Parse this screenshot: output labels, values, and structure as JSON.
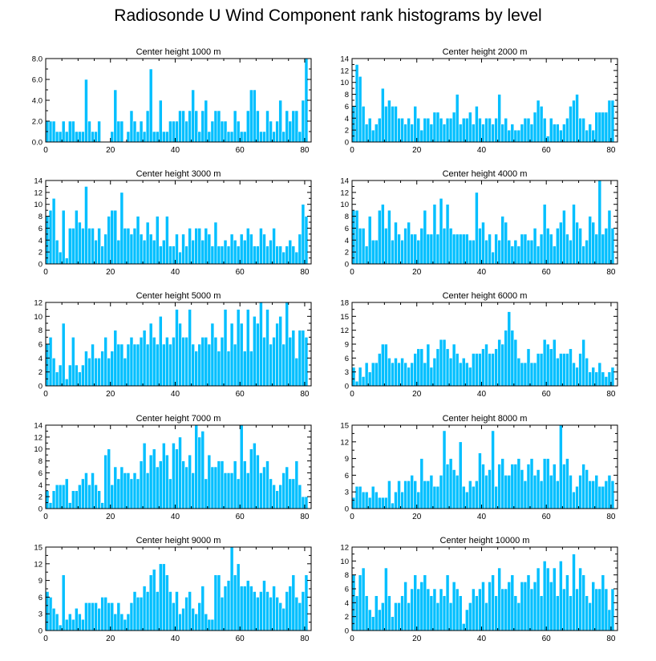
{
  "title": "Radiosonde U Wind Component rank histograms by level",
  "colors": {
    "bar_fill": "#00BFFF",
    "bar_edge": "#FFFFFF",
    "axis": "#000000"
  },
  "chart_data": [
    {
      "type": "bar",
      "title": "Center height 1000 m",
      "ylim": [
        0,
        8
      ],
      "yticks": [
        0,
        2,
        4,
        6,
        8
      ],
      "ytick_labels": [
        "0.0",
        "2.0",
        "4.0",
        "6.0",
        "8.0"
      ],
      "xlim": [
        0,
        82
      ],
      "xticks": [
        0,
        20,
        40,
        60,
        80
      ],
      "y_axis_side": "left",
      "values": [
        2,
        2,
        2,
        1,
        1,
        2,
        1,
        2,
        2,
        1,
        1,
        1,
        6,
        2,
        1,
        1,
        2,
        0,
        0,
        0,
        1,
        5,
        2,
        2,
        0,
        1,
        3,
        2,
        1,
        2,
        1,
        3,
        7,
        1,
        1,
        4,
        1,
        1,
        2,
        2,
        2,
        3,
        3,
        2,
        3,
        5,
        3,
        1,
        3,
        4,
        1,
        2,
        3,
        3,
        2,
        2,
        1,
        1,
        3,
        2,
        1,
        1,
        3,
        5,
        5,
        3,
        1,
        1,
        3,
        2,
        1,
        2,
        4,
        1,
        3,
        2,
        3,
        3,
        1,
        4,
        8
      ]
    },
    {
      "type": "bar",
      "title": "Center height 2000 m",
      "ylim": [
        0,
        14
      ],
      "yticks": [
        0,
        2,
        4,
        6,
        8,
        10,
        12,
        14
      ],
      "ytick_labels": [
        "0",
        "2",
        "4",
        "6",
        "8",
        "10",
        "12",
        "14"
      ],
      "xlim": [
        0,
        82
      ],
      "xticks": [
        0,
        20,
        40,
        60,
        80
      ],
      "y_axis_side": "right",
      "values": [
        6,
        13,
        11,
        6,
        3,
        4,
        2,
        3,
        4,
        9,
        6,
        7,
        6,
        6,
        4,
        4,
        3,
        4,
        3,
        6,
        4,
        2,
        4,
        4,
        3,
        5,
        5,
        4,
        3,
        4,
        4,
        5,
        8,
        3,
        4,
        4,
        5,
        3,
        6,
        4,
        3,
        4,
        4,
        3,
        4,
        8,
        3,
        4,
        2,
        3,
        2,
        2,
        3,
        4,
        4,
        3,
        5,
        7,
        6,
        4,
        1,
        4,
        3,
        3,
        2,
        3,
        4,
        6,
        7,
        8,
        4,
        4,
        2,
        3,
        2,
        5,
        5,
        5,
        5,
        7,
        7
      ]
    },
    {
      "type": "bar",
      "title": "Center height 3000 m",
      "ylim": [
        0,
        14
      ],
      "yticks": [
        0,
        2,
        4,
        6,
        8,
        10,
        12,
        14
      ],
      "ytick_labels": [
        "0",
        "2",
        "4",
        "6",
        "8",
        "10",
        "12",
        "14"
      ],
      "xlim": [
        0,
        82
      ],
      "xticks": [
        0,
        20,
        40,
        60,
        80
      ],
      "y_axis_side": "left",
      "values": [
        8,
        9,
        11,
        4,
        2,
        9,
        1,
        6,
        6,
        9,
        7,
        6,
        13,
        6,
        6,
        4,
        6,
        3,
        5,
        8,
        9,
        9,
        4,
        12,
        6,
        6,
        5,
        6,
        8,
        5,
        4,
        7,
        5,
        4,
        8,
        3,
        4,
        8,
        3,
        3,
        5,
        2,
        5,
        3,
        6,
        4,
        6,
        6,
        4,
        6,
        5,
        3,
        7,
        3,
        3,
        4,
        3,
        5,
        4,
        3,
        5,
        4,
        6,
        5,
        3,
        3,
        6,
        5,
        3,
        4,
        6,
        3,
        3,
        2,
        3,
        4,
        3,
        2,
        5,
        10,
        8
      ]
    },
    {
      "type": "bar",
      "title": "Center height 4000 m",
      "ylim": [
        0,
        14
      ],
      "yticks": [
        0,
        2,
        4,
        6,
        8,
        10,
        12,
        14
      ],
      "ytick_labels": [
        "0",
        "2",
        "4",
        "6",
        "8",
        "10",
        "12",
        "14"
      ],
      "xlim": [
        0,
        82
      ],
      "xticks": [
        0,
        20,
        40,
        60,
        80
      ],
      "y_axis_side": "right",
      "values": [
        9,
        9,
        6,
        6,
        3,
        8,
        4,
        4,
        9,
        10,
        6,
        9,
        4,
        7,
        5,
        4,
        6,
        7,
        5,
        5,
        4,
        6,
        9,
        5,
        5,
        10,
        5,
        11,
        6,
        10,
        6,
        5,
        5,
        5,
        5,
        5,
        4,
        4,
        12,
        6,
        7,
        4,
        5,
        2,
        5,
        4,
        8,
        7,
        4,
        3,
        4,
        3,
        5,
        5,
        4,
        4,
        6,
        3,
        5,
        10,
        6,
        5,
        3,
        6,
        7,
        9,
        5,
        4,
        10,
        7,
        6,
        3,
        4,
        8,
        7,
        5,
        14,
        5,
        6,
        9,
        6
      ]
    },
    {
      "type": "bar",
      "title": "Center height 5000 m",
      "ylim": [
        0,
        12
      ],
      "yticks": [
        0,
        2,
        4,
        6,
        8,
        10,
        12
      ],
      "ytick_labels": [
        "0",
        "2",
        "4",
        "6",
        "8",
        "10",
        "12"
      ],
      "xlim": [
        0,
        82
      ],
      "xticks": [
        0,
        20,
        40,
        60,
        80
      ],
      "y_axis_side": "left",
      "values": [
        6,
        7,
        4,
        2,
        3,
        9,
        1,
        3,
        7,
        3,
        2,
        3,
        5,
        4,
        6,
        4,
        4,
        5,
        7,
        4,
        5,
        8,
        6,
        6,
        4,
        6,
        7,
        6,
        6,
        7,
        8,
        6,
        9,
        7,
        6,
        10,
        6,
        7,
        6,
        7,
        11,
        9,
        7,
        7,
        11,
        6,
        5,
        6,
        7,
        7,
        6,
        9,
        7,
        5,
        7,
        11,
        5,
        9,
        6,
        11,
        9,
        5,
        11,
        5,
        10,
        9,
        12,
        7,
        11,
        6,
        7,
        9,
        10,
        6,
        12,
        7,
        8,
        4,
        8,
        8,
        7
      ]
    },
    {
      "type": "bar",
      "title": "Center height 6000 m",
      "ylim": [
        0,
        18
      ],
      "yticks": [
        0,
        3,
        6,
        9,
        12,
        15,
        18
      ],
      "ytick_labels": [
        "0",
        "3",
        "6",
        "9",
        "12",
        "15",
        "18"
      ],
      "xlim": [
        0,
        82
      ],
      "xticks": [
        0,
        20,
        40,
        60,
        80
      ],
      "y_axis_side": "right",
      "values": [
        4,
        1,
        4,
        2,
        5,
        3,
        5,
        5,
        7,
        9,
        9,
        6,
        5,
        6,
        5,
        6,
        5,
        4,
        5,
        7,
        8,
        8,
        5,
        9,
        4,
        6,
        8,
        10,
        10,
        8,
        6,
        9,
        7,
        5,
        6,
        5,
        4,
        7,
        7,
        7,
        8,
        9,
        7,
        7,
        8,
        10,
        9,
        12,
        16,
        12,
        10,
        6,
        5,
        5,
        8,
        5,
        5,
        7,
        7,
        10,
        9,
        8,
        10,
        6,
        7,
        7,
        7,
        8,
        5,
        4,
        7,
        10,
        6,
        3,
        4,
        3,
        5,
        3,
        2,
        3,
        4
      ]
    },
    {
      "type": "bar",
      "title": "Center height 7000 m",
      "ylim": [
        0,
        14
      ],
      "yticks": [
        0,
        2,
        4,
        6,
        8,
        10,
        12,
        14
      ],
      "ytick_labels": [
        "0",
        "2",
        "4",
        "6",
        "8",
        "10",
        "12",
        "14"
      ],
      "xlim": [
        0,
        82
      ],
      "xticks": [
        0,
        20,
        40,
        60,
        80
      ],
      "y_axis_side": "left",
      "values": [
        3,
        1,
        3,
        4,
        4,
        4,
        5,
        1,
        3,
        3,
        4,
        5,
        6,
        4,
        6,
        4,
        3,
        1,
        9,
        10,
        4,
        7,
        5,
        7,
        6,
        6,
        5,
        6,
        5,
        8,
        11,
        6,
        9,
        10,
        7,
        8,
        11,
        9,
        5,
        11,
        10,
        12,
        8,
        7,
        9,
        6,
        14,
        12,
        13,
        5,
        9,
        7,
        7,
        8,
        8,
        6,
        6,
        6,
        8,
        5,
        14,
        8,
        6,
        10,
        11,
        9,
        6,
        7,
        8,
        5,
        4,
        3,
        4,
        6,
        7,
        5,
        5,
        8,
        4,
        2,
        2
      ]
    },
    {
      "type": "bar",
      "title": "Center height 8000 m",
      "ylim": [
        0,
        15
      ],
      "yticks": [
        0,
        3,
        6,
        9,
        12,
        15
      ],
      "ytick_labels": [
        "0",
        "3",
        "6",
        "9",
        "12",
        "15"
      ],
      "xlim": [
        0,
        82
      ],
      "xticks": [
        0,
        20,
        40,
        60,
        80
      ],
      "y_axis_side": "right",
      "values": [
        2,
        4,
        4,
        3,
        3,
        2,
        4,
        3,
        2,
        2,
        2,
        5,
        1,
        3,
        5,
        3,
        5,
        5,
        6,
        5,
        3,
        9,
        5,
        5,
        6,
        4,
        4,
        6,
        14,
        8,
        9,
        7,
        6,
        12,
        4,
        3,
        5,
        4,
        5,
        10,
        8,
        6,
        7,
        14,
        4,
        8,
        9,
        6,
        6,
        8,
        8,
        9,
        7,
        5,
        8,
        9,
        6,
        7,
        5,
        9,
        9,
        6,
        8,
        5,
        15,
        8,
        9,
        6,
        3,
        4,
        6,
        8,
        7,
        5,
        5,
        6,
        4,
        4,
        5,
        6,
        5
      ]
    },
    {
      "type": "bar",
      "title": "Center height 9000 m",
      "ylim": [
        0,
        15
      ],
      "yticks": [
        0,
        3,
        6,
        9,
        12,
        15
      ],
      "ytick_labels": [
        "0",
        "3",
        "6",
        "9",
        "12",
        "15"
      ],
      "xlim": [
        0,
        82
      ],
      "xticks": [
        0,
        20,
        40,
        60,
        80
      ],
      "y_axis_side": "left",
      "values": [
        7,
        6,
        4,
        3,
        1,
        10,
        2,
        3,
        2,
        4,
        3,
        2,
        5,
        5,
        5,
        5,
        4,
        6,
        6,
        5,
        5,
        3,
        5,
        3,
        2,
        3,
        5,
        7,
        6,
        6,
        8,
        7,
        10,
        11,
        7,
        12,
        12,
        10,
        7,
        5,
        7,
        3,
        4,
        6,
        7,
        4,
        3,
        5,
        8,
        3,
        2,
        2,
        10,
        10,
        6,
        8,
        9,
        15,
        10,
        12,
        8,
        8,
        9,
        8,
        7,
        6,
        7,
        9,
        7,
        6,
        8,
        6,
        5,
        4,
        7,
        8,
        10,
        6,
        5,
        7,
        10
      ]
    },
    {
      "type": "bar",
      "title": "Center height 10000 m",
      "ylim": [
        0,
        12
      ],
      "yticks": [
        0,
        2,
        4,
        6,
        8,
        10,
        12
      ],
      "ytick_labels": [
        "0",
        "2",
        "4",
        "6",
        "8",
        "10",
        "12"
      ],
      "xlim": [
        0,
        82
      ],
      "xticks": [
        0,
        20,
        40,
        60,
        80
      ],
      "y_axis_side": "right",
      "values": [
        8,
        5,
        8,
        9,
        5,
        3,
        2,
        5,
        3,
        4,
        9,
        5,
        2,
        4,
        4,
        5,
        7,
        4,
        6,
        8,
        6,
        7,
        8,
        6,
        5,
        6,
        4,
        6,
        5,
        8,
        4,
        7,
        6,
        5,
        1,
        3,
        4,
        6,
        5,
        6,
        7,
        4,
        7,
        8,
        5,
        9,
        6,
        6,
        7,
        8,
        5,
        4,
        7,
        7,
        8,
        6,
        7,
        9,
        5,
        10,
        9,
        7,
        9,
        5,
        10,
        6,
        8,
        5,
        11,
        6,
        9,
        8,
        5,
        4,
        7,
        6,
        6,
        8,
        6,
        3,
        6
      ]
    }
  ]
}
